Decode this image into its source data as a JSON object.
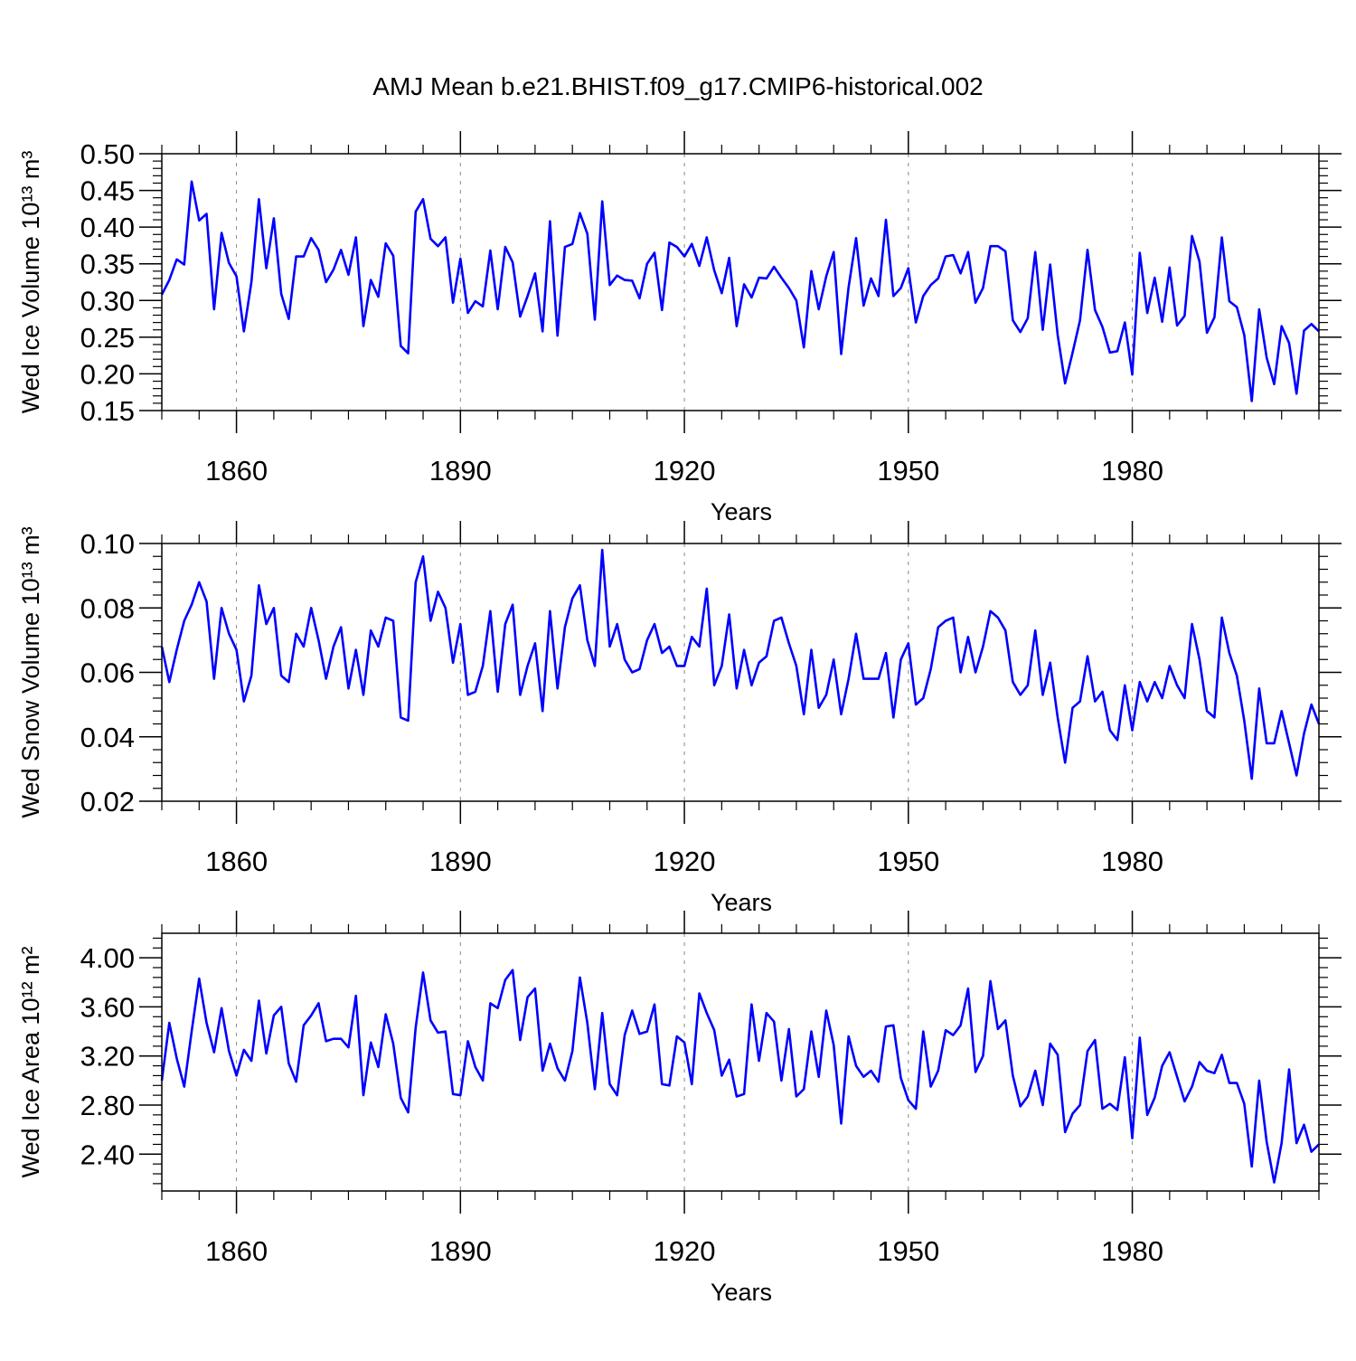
{
  "title": "AMJ Mean b.e21.BHIST.f09_g17.CMIP6-historical.002",
  "colors": {
    "series": "#0000ff",
    "axis": "#000000",
    "grid": "#888888"
  },
  "chart_data": [
    {
      "type": "line",
      "ylabel": "Wed Ice Volume 10¹³ m³",
      "xlabel": "Years",
      "xlim": [
        1850,
        2005
      ],
      "ylim": [
        0.15,
        0.5
      ],
      "x_ticks": [
        1860,
        1890,
        1920,
        1950,
        1980
      ],
      "y_ticks": [
        "0.15",
        "0.20",
        "0.25",
        "0.30",
        "0.35",
        "0.40",
        "0.45",
        "0.50"
      ],
      "grid": "dashed vertical at major x ticks",
      "x_start": 1850,
      "values": [
        0.308,
        0.328,
        0.356,
        0.349,
        0.462,
        0.409,
        0.418,
        0.288,
        0.392,
        0.351,
        0.333,
        0.258,
        0.325,
        0.438,
        0.344,
        0.412,
        0.309,
        0.275,
        0.36,
        0.36,
        0.385,
        0.369,
        0.325,
        0.342,
        0.369,
        0.335,
        0.386,
        0.265,
        0.328,
        0.305,
        0.378,
        0.361,
        0.238,
        0.228,
        0.421,
        0.438,
        0.384,
        0.374,
        0.386,
        0.297,
        0.357,
        0.283,
        0.299,
        0.292,
        0.368,
        0.288,
        0.373,
        0.352,
        0.278,
        0.306,
        0.337,
        0.258,
        0.408,
        0.252,
        0.373,
        0.377,
        0.419,
        0.391,
        0.274,
        0.435,
        0.321,
        0.334,
        0.328,
        0.327,
        0.303,
        0.35,
        0.365,
        0.287,
        0.379,
        0.373,
        0.36,
        0.377,
        0.347,
        0.386,
        0.341,
        0.31,
        0.358,
        0.265,
        0.322,
        0.304,
        0.331,
        0.33,
        0.346,
        0.331,
        0.317,
        0.3,
        0.236,
        0.34,
        0.288,
        0.333,
        0.366,
        0.227,
        0.318,
        0.385,
        0.293,
        0.33,
        0.306,
        0.41,
        0.306,
        0.317,
        0.344,
        0.27,
        0.306,
        0.321,
        0.33,
        0.36,
        0.362,
        0.337,
        0.366,
        0.297,
        0.317,
        0.374,
        0.374,
        0.367,
        0.273,
        0.257,
        0.276,
        0.366,
        0.26,
        0.349,
        0.253,
        0.187,
        0.229,
        0.273,
        0.369,
        0.287,
        0.264,
        0.229,
        0.231,
        0.27,
        0.199,
        0.365,
        0.283,
        0.331,
        0.271,
        0.345,
        0.266,
        0.279,
        0.388,
        0.353,
        0.256,
        0.277,
        0.386,
        0.299,
        0.291,
        0.253,
        0.163,
        0.288,
        0.222,
        0.186,
        0.265,
        0.242,
        0.173,
        0.259,
        0.268,
        0.258
      ]
    },
    {
      "type": "line",
      "ylabel": "Wed Snow Volume 10¹³ m³",
      "xlabel": "Years",
      "xlim": [
        1850,
        2005
      ],
      "ylim": [
        0.02,
        0.1
      ],
      "x_ticks": [
        1860,
        1890,
        1920,
        1950,
        1980
      ],
      "y_ticks": [
        "0.02",
        "0.04",
        "0.06",
        "0.08",
        "0.10"
      ],
      "grid": "dashed vertical at major x ticks",
      "x_start": 1850,
      "values": [
        0.068,
        0.057,
        0.067,
        0.076,
        0.081,
        0.088,
        0.082,
        0.058,
        0.08,
        0.072,
        0.067,
        0.051,
        0.059,
        0.087,
        0.075,
        0.08,
        0.059,
        0.057,
        0.072,
        0.068,
        0.08,
        0.07,
        0.058,
        0.068,
        0.074,
        0.055,
        0.067,
        0.053,
        0.073,
        0.068,
        0.077,
        0.076,
        0.046,
        0.045,
        0.088,
        0.096,
        0.076,
        0.085,
        0.08,
        0.063,
        0.075,
        0.053,
        0.054,
        0.062,
        0.079,
        0.054,
        0.075,
        0.081,
        0.053,
        0.062,
        0.069,
        0.048,
        0.079,
        0.055,
        0.074,
        0.083,
        0.087,
        0.07,
        0.062,
        0.098,
        0.068,
        0.075,
        0.064,
        0.06,
        0.061,
        0.07,
        0.075,
        0.066,
        0.068,
        0.062,
        0.062,
        0.071,
        0.068,
        0.086,
        0.056,
        0.062,
        0.078,
        0.055,
        0.067,
        0.056,
        0.063,
        0.065,
        0.076,
        0.077,
        0.069,
        0.062,
        0.047,
        0.067,
        0.049,
        0.053,
        0.064,
        0.047,
        0.058,
        0.072,
        0.058,
        0.058,
        0.058,
        0.066,
        0.046,
        0.064,
        0.069,
        0.05,
        0.052,
        0.061,
        0.074,
        0.076,
        0.077,
        0.06,
        0.071,
        0.06,
        0.068,
        0.079,
        0.077,
        0.073,
        0.057,
        0.053,
        0.056,
        0.073,
        0.053,
        0.063,
        0.046,
        0.032,
        0.049,
        0.051,
        0.065,
        0.051,
        0.054,
        0.042,
        0.039,
        0.056,
        0.042,
        0.057,
        0.051,
        0.057,
        0.052,
        0.062,
        0.056,
        0.052,
        0.075,
        0.064,
        0.048,
        0.046,
        0.077,
        0.066,
        0.059,
        0.045,
        0.027,
        0.055,
        0.038,
        0.038,
        0.048,
        0.038,
        0.028,
        0.041,
        0.05,
        0.044
      ]
    },
    {
      "type": "line",
      "ylabel": "Wed Ice Area 10¹² m²",
      "xlabel": "Years",
      "xlim": [
        1850,
        2005
      ],
      "ylim": [
        2.1,
        4.2
      ],
      "x_ticks": [
        1860,
        1890,
        1920,
        1950,
        1980
      ],
      "y_ticks": [
        "2.40",
        "2.80",
        "3.20",
        "3.60",
        "4.00"
      ],
      "grid": "dashed vertical at major x ticks",
      "x_start": 1850,
      "values": [
        3.0,
        3.47,
        3.18,
        2.95,
        3.4,
        3.83,
        3.47,
        3.23,
        3.59,
        3.24,
        3.04,
        3.25,
        3.16,
        3.65,
        3.22,
        3.53,
        3.6,
        3.14,
        2.99,
        3.45,
        3.53,
        3.63,
        3.32,
        3.34,
        3.34,
        3.27,
        3.69,
        2.88,
        3.31,
        3.11,
        3.54,
        3.3,
        2.86,
        2.74,
        3.43,
        3.88,
        3.49,
        3.39,
        3.4,
        2.89,
        2.88,
        3.32,
        3.11,
        3.0,
        3.63,
        3.59,
        3.82,
        3.9,
        3.33,
        3.68,
        3.75,
        3.08,
        3.3,
        3.1,
        3.0,
        3.24,
        3.84,
        3.47,
        2.93,
        3.55,
        2.97,
        2.88,
        3.37,
        3.57,
        3.38,
        3.4,
        3.62,
        2.97,
        2.96,
        3.36,
        3.31,
        2.97,
        3.71,
        3.55,
        3.41,
        3.04,
        3.17,
        2.87,
        2.89,
        3.62,
        3.16,
        3.55,
        3.48,
        3.0,
        3.42,
        2.87,
        2.93,
        3.4,
        3.03,
        3.57,
        3.29,
        2.65,
        3.36,
        3.12,
        3.03,
        3.08,
        2.99,
        3.44,
        3.45,
        3.02,
        2.84,
        2.77,
        3.4,
        2.95,
        3.08,
        3.41,
        3.37,
        3.45,
        3.75,
        3.07,
        3.2,
        3.81,
        3.42,
        3.49,
        3.04,
        2.79,
        2.87,
        3.08,
        2.8,
        3.3,
        3.21,
        2.58,
        2.73,
        2.8,
        3.24,
        3.33,
        2.77,
        2.81,
        2.76,
        3.19,
        2.53,
        3.35,
        2.72,
        2.86,
        3.12,
        3.23,
        3.03,
        2.83,
        2.95,
        3.15,
        3.08,
        3.06,
        3.21,
        2.98,
        2.98,
        2.81,
        2.3,
        3.0,
        2.5,
        2.17,
        2.49,
        3.09,
        2.49,
        2.64,
        2.42,
        2.48
      ]
    }
  ]
}
